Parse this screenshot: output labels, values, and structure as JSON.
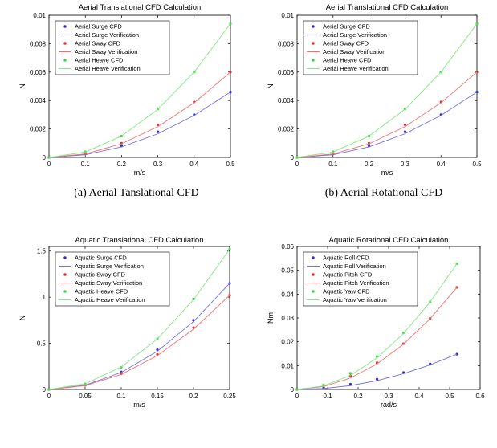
{
  "chart_data": [
    {
      "type": "line",
      "title": "Aerial Translational CFD Calculation",
      "caption": "(a) Aerial Tanslational CFD",
      "xlabel": "m/s",
      "ylabel": "N",
      "xlim": [
        0,
        0.5
      ],
      "ylim": [
        0,
        0.01
      ],
      "xticks": [
        "0",
        "0.1",
        "0.2",
        "0.3",
        "0.4",
        "0.5"
      ],
      "yticks": [
        "0",
        "0.002",
        "0.004",
        "0.006",
        "0.008",
        "0.01"
      ],
      "grid": false,
      "legend_position": "top-left",
      "x": [
        0,
        0.1,
        0.2,
        0.3,
        0.4,
        0.5
      ],
      "series": [
        {
          "name": "Aerial Surge CFD",
          "kind": "points",
          "color": "#2b2bd6",
          "values": [
            0,
            0.00025,
            0.0008,
            0.0018,
            0.003,
            0.0046
          ]
        },
        {
          "name": "Aerial Surge Verification",
          "kind": "line",
          "color": "#7070e8",
          "values": [
            0,
            0.00019,
            0.00074,
            0.00166,
            0.00295,
            0.0046
          ]
        },
        {
          "name": "Aerial Sway CFD",
          "kind": "points",
          "color": "#e62a2a",
          "values": [
            0,
            0.0003,
            0.001,
            0.0023,
            0.0039,
            0.006
          ]
        },
        {
          "name": "Aerial Sway Verification",
          "kind": "line",
          "color": "#f07070",
          "values": [
            0,
            0.00024,
            0.00096,
            0.00216,
            0.00384,
            0.006
          ]
        },
        {
          "name": "Aerial Heave CFD",
          "kind": "points",
          "color": "#3ad63a",
          "values": [
            0,
            0.0004,
            0.0015,
            0.0034,
            0.006,
            0.0094
          ]
        },
        {
          "name": "Aerial Heave Verification",
          "kind": "line",
          "color": "#80e880",
          "values": [
            0,
            0.00038,
            0.0015,
            0.00338,
            0.006,
            0.0094
          ]
        }
      ]
    },
    {
      "type": "line",
      "title": "Aerial Translational CFD Calculation",
      "caption": "(b) Aerial Rotational CFD",
      "xlabel": "m/s",
      "ylabel": "N",
      "xlim": [
        0,
        0.5
      ],
      "ylim": [
        0,
        0.01
      ],
      "xticks": [
        "0",
        "0.1",
        "0.2",
        "0.3",
        "0.4",
        "0.5"
      ],
      "yticks": [
        "0",
        "0.002",
        "0.004",
        "0.006",
        "0.008",
        "0.01"
      ],
      "grid": false,
      "legend_position": "top-left",
      "x": [
        0,
        0.1,
        0.2,
        0.3,
        0.4,
        0.5
      ],
      "series": [
        {
          "name": "Aerial Surge CFD",
          "kind": "points",
          "color": "#2b2bd6",
          "values": [
            0,
            0.00025,
            0.0008,
            0.0018,
            0.003,
            0.0046
          ]
        },
        {
          "name": "Aerial Surge Verification",
          "kind": "line",
          "color": "#7070e8",
          "values": [
            0,
            0.00019,
            0.00074,
            0.00166,
            0.00295,
            0.0046
          ]
        },
        {
          "name": "Aerial Sway CFD",
          "kind": "points",
          "color": "#e62a2a",
          "values": [
            0,
            0.0003,
            0.001,
            0.0023,
            0.0039,
            0.006
          ]
        },
        {
          "name": "Aerial Sway Verification",
          "kind": "line",
          "color": "#f07070",
          "values": [
            0,
            0.00024,
            0.00096,
            0.00216,
            0.00384,
            0.006
          ]
        },
        {
          "name": "Aerial Heave CFD",
          "kind": "points",
          "color": "#3ad63a",
          "values": [
            0,
            0.0004,
            0.0015,
            0.0034,
            0.006,
            0.0094
          ]
        },
        {
          "name": "Aerial Heave Verification",
          "kind": "line",
          "color": "#80e880",
          "values": [
            0,
            0.00038,
            0.0015,
            0.00338,
            0.006,
            0.0094
          ]
        }
      ]
    },
    {
      "type": "line",
      "title": "Aquatic Translational CFD Calculation",
      "caption": "(c) Aquatic Tanslational CFD",
      "xlabel": "m/s",
      "ylabel": "N",
      "xlim": [
        0,
        0.25
      ],
      "ylim": [
        0,
        1.55
      ],
      "xticks": [
        "0",
        "0.05",
        "0.1",
        "0.15",
        "0.2",
        "0.25"
      ],
      "yticks": [
        "0",
        "0.5",
        "1",
        "1.5"
      ],
      "grid": false,
      "legend_position": "top-left",
      "x": [
        0,
        0.05,
        0.1,
        0.15,
        0.2,
        0.25
      ],
      "series": [
        {
          "name": "Aquatic Surge CFD",
          "kind": "points",
          "color": "#2b2bd6",
          "values": [
            0,
            0.05,
            0.19,
            0.43,
            0.75,
            1.15
          ]
        },
        {
          "name": "Aquatic Surge Verification",
          "kind": "line",
          "color": "#7070e8",
          "values": [
            0,
            0.046,
            0.184,
            0.414,
            0.736,
            1.15
          ]
        },
        {
          "name": "Aquatic Sway CFD",
          "kind": "points",
          "color": "#e62a2a",
          "values": [
            0,
            0.045,
            0.17,
            0.38,
            0.67,
            1.02
          ]
        },
        {
          "name": "Aquatic Sway Verification",
          "kind": "line",
          "color": "#f07070",
          "values": [
            0,
            0.041,
            0.163,
            0.367,
            0.653,
            1.02
          ]
        },
        {
          "name": "Aquatic Heave CFD",
          "kind": "points",
          "color": "#3ad63a",
          "values": [
            0,
            0.06,
            0.24,
            0.55,
            0.98,
            1.52
          ]
        },
        {
          "name": "Aquatic Heave Verification",
          "kind": "line",
          "color": "#80e880",
          "values": [
            0,
            0.061,
            0.243,
            0.547,
            0.973,
            1.52
          ]
        }
      ]
    },
    {
      "type": "line",
      "title": "Aquatic Rotational CFD Calculation",
      "caption": "(d) Aquatic Rotational CFD",
      "xlabel": "rad/s",
      "ylabel": "Nm",
      "xlim": [
        0,
        0.6
      ],
      "ylim": [
        0,
        0.06
      ],
      "xticks": [
        "0",
        "0.1",
        "0.2",
        "0.3",
        "0.4",
        "0.5",
        "0.6"
      ],
      "yticks": [
        "0",
        "0.01",
        "0.02",
        "0.03",
        "0.04",
        "0.05",
        "0.06"
      ],
      "grid": false,
      "legend_position": "top-left",
      "x": [
        0,
        0.087,
        0.175,
        0.262,
        0.349,
        0.436,
        0.524
      ],
      "series": [
        {
          "name": "Aquatic Roll CFD",
          "kind": "points",
          "color": "#2b2bd6",
          "values": [
            0,
            0.0006,
            0.0022,
            0.0043,
            0.0071,
            0.0107,
            0.0148
          ]
        },
        {
          "name": "Aquatic Roll Verification",
          "kind": "line",
          "color": "#7070e8",
          "values": [
            0,
            0.0004,
            0.0016,
            0.0037,
            0.0066,
            0.0103,
            0.0148
          ]
        },
        {
          "name": "Aquatic Pitch CFD",
          "kind": "points",
          "color": "#e62a2a",
          "values": [
            0,
            0.0017,
            0.0057,
            0.0112,
            0.0192,
            0.0298,
            0.0428
          ]
        },
        {
          "name": "Aquatic Pitch Verification",
          "kind": "line",
          "color": "#f07070",
          "values": [
            0,
            0.0012,
            0.0048,
            0.0107,
            0.019,
            0.0297,
            0.0428
          ]
        },
        {
          "name": "Aquatic Yaw CFD",
          "kind": "points",
          "color": "#3ad63a",
          "values": [
            0,
            0.0018,
            0.0068,
            0.0138,
            0.0238,
            0.0368,
            0.0528
          ]
        },
        {
          "name": "Aquatic Yaw Verification",
          "kind": "line",
          "color": "#80e880",
          "values": [
            0,
            0.0015,
            0.0059,
            0.0132,
            0.0235,
            0.0367,
            0.0528
          ]
        }
      ]
    }
  ]
}
